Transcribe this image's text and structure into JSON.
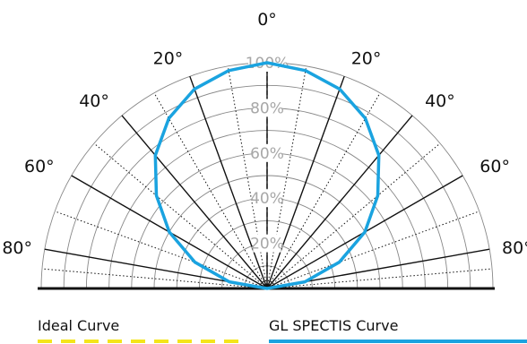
{
  "chart_data": {
    "type": "polar",
    "angle_labels_left": [
      "20°",
      "40°",
      "60°",
      "80°"
    ],
    "angle_labels_right": [
      "20°",
      "40°",
      "60°",
      "80°"
    ],
    "angle_label_top": "0°",
    "angle_ticks_deg": [
      20,
      40,
      60,
      80
    ],
    "radial_labels": [
      "100%",
      "80%",
      "60%",
      "40%",
      "20%"
    ],
    "radial_values": [
      100,
      80,
      60,
      40,
      20
    ],
    "radial_grid": [
      10,
      20,
      30,
      40,
      50,
      60,
      70,
      80,
      90,
      100
    ],
    "angle_range": [
      -90,
      90
    ],
    "r_range": [
      0,
      100
    ],
    "series": [
      {
        "name": "Ideal Curve",
        "color": "#f4e51a",
        "style": "dashed",
        "angles": [
          -90,
          -80,
          -70,
          -60,
          -50,
          -40,
          -30,
          -20,
          -10,
          0,
          10,
          20,
          30,
          40,
          50,
          60,
          70,
          80,
          90
        ],
        "values": [
          0,
          17,
          34,
          50,
          64,
          77,
          87,
          94,
          98,
          100,
          98,
          94,
          87,
          77,
          64,
          50,
          34,
          17,
          0
        ]
      },
      {
        "name": "GL SPECTIS Curve",
        "color": "#1aa3e0",
        "style": "solid",
        "angles": [
          -90,
          -80,
          -70,
          -60,
          -50,
          -40,
          -30,
          -20,
          -10,
          0,
          10,
          20,
          30,
          40,
          50,
          60,
          70,
          80,
          90
        ],
        "values": [
          0,
          17,
          34,
          50,
          64,
          77,
          87,
          94,
          98,
          100,
          98,
          94,
          87,
          77,
          64,
          50,
          34,
          17,
          0
        ]
      }
    ]
  },
  "legend": {
    "ideal_label": "Ideal Curve",
    "gl_label": "GL SPECTIS Curve"
  },
  "colors": {
    "grid": "#888888",
    "spoke": "#111111",
    "baseline": "#111111",
    "radial_label": "#a7a7a7",
    "angle_label": "#111111"
  }
}
